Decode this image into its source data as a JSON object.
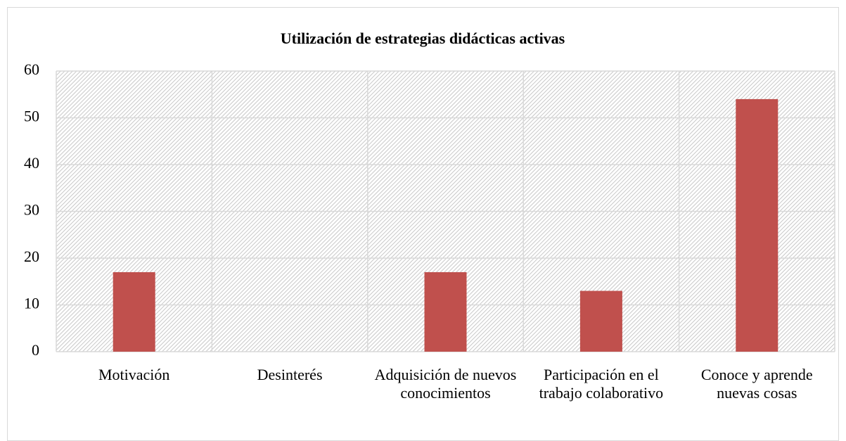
{
  "chart_data": {
    "type": "bar",
    "title": "Utilización de estrategias didácticas activas",
    "categories": [
      "Motivación",
      "Desinterés",
      "Adquisición de nuevos conocimientos",
      "Participación en el trabajo colaborativo",
      "Conoce y aprende nuevas cosas"
    ],
    "values": [
      17,
      0,
      17,
      13,
      54
    ],
    "color": "#c0504d",
    "ylim": [
      0,
      60
    ],
    "yticks": [
      0,
      10,
      20,
      30,
      40,
      50,
      60
    ],
    "grid": true
  }
}
